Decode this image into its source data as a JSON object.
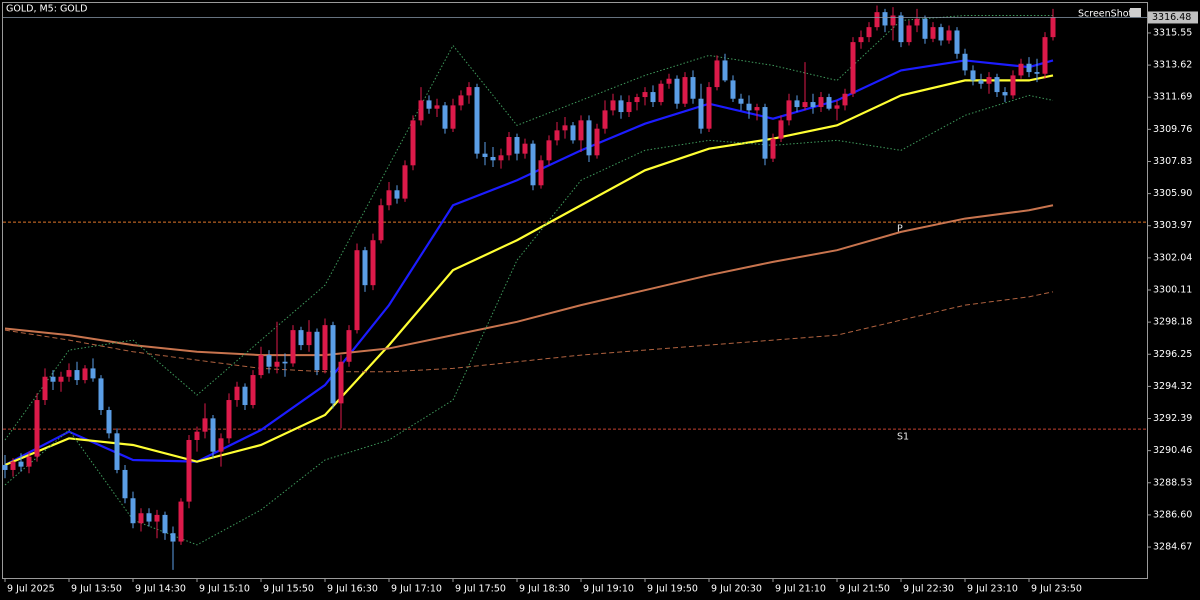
{
  "chart_data": {
    "type": "candlestick",
    "title": "GOLD, M5:  GOLD",
    "screenshot_label": "ScreenShot",
    "bull_color": "#dc1a4a",
    "bear_color": "#5b9ee6",
    "last_price": 3316.48,
    "ylim": [
      3282.81,
      3317.53
    ],
    "yticks": [
      3315.55,
      3313.62,
      3311.69,
      3309.76,
      3307.83,
      {
        "value": 3305.9,
        "label": "3305.90"
      },
      3303.97,
      3302.04,
      3300.11,
      3298.18,
      3296.25,
      3294.32,
      3292.39,
      3290.46,
      3288.53,
      {
        "value": 3286.6,
        "label": "3286.60"
      },
      3284.67
    ],
    "categories": [
      "9 Jul 2025",
      null,
      null,
      null,
      null,
      null,
      null,
      null,
      "9 Jul 13:50",
      null,
      null,
      null,
      null,
      null,
      null,
      null,
      "9 Jul 14:30",
      null,
      null,
      null,
      null,
      null,
      null,
      null,
      "9 Jul 15:10",
      null,
      null,
      null,
      null,
      null,
      null,
      null,
      "9 Jul 15:50",
      null,
      null,
      null,
      null,
      null,
      null,
      null,
      "9 Jul 16:30",
      null,
      null,
      null,
      null,
      null,
      null,
      null,
      "9 Jul 17:10",
      null,
      null,
      null,
      null,
      null,
      null,
      null,
      "9 Jul 17:50",
      null,
      null,
      null,
      null,
      null,
      null,
      null,
      "9 Jul 18:30",
      null,
      null,
      null,
      null,
      null,
      null,
      null,
      "9 Jul 19:10",
      null,
      null,
      null,
      null,
      null,
      null,
      null,
      "9 Jul 19:50",
      null,
      null,
      null,
      null,
      null,
      null,
      null,
      "9 Jul 20:30",
      null,
      null,
      null,
      null,
      null,
      null,
      null,
      "9 Jul 21:10",
      null,
      null,
      null,
      null,
      null,
      null,
      null,
      "9 Jul 21:50",
      null,
      null,
      null,
      null,
      null,
      null,
      null,
      "9 Jul 22:30",
      null,
      null,
      null,
      null,
      null,
      null,
      null,
      "9 Jul 23:10",
      null,
      null,
      null,
      null,
      null,
      null,
      null,
      "9 Jul 23:50",
      null,
      null,
      null
    ],
    "candles": [
      [
        3289.6,
        3290.2,
        3288.8,
        3289.3
      ],
      [
        3289.3,
        3290.0,
        3288.9,
        3289.8
      ],
      [
        3289.8,
        3290.3,
        3289.2,
        3289.5
      ],
      [
        3289.5,
        3290.4,
        3289.1,
        3290.1
      ],
      [
        3290.1,
        3293.9,
        3289.8,
        3293.5
      ],
      [
        3293.5,
        3295.4,
        3293.2,
        3294.9
      ],
      [
        3294.9,
        3295.3,
        3294.1,
        3294.6
      ],
      [
        3294.6,
        3295.2,
        3294.0,
        3294.9
      ],
      [
        3294.9,
        3295.7,
        3294.6,
        3295.3
      ],
      [
        3295.3,
        3295.8,
        3294.4,
        3294.7
      ],
      [
        3294.7,
        3295.6,
        3294.5,
        3295.4
      ],
      [
        3295.4,
        3296.0,
        3294.6,
        3294.8
      ],
      [
        3294.8,
        3295.0,
        3292.6,
        3292.9
      ],
      [
        3292.9,
        3293.1,
        3291.2,
        3291.5
      ],
      [
        3291.5,
        3291.8,
        3289.1,
        3289.3
      ],
      [
        3289.3,
        3289.6,
        3287.3,
        3287.6
      ],
      [
        3287.6,
        3288.0,
        3285.8,
        3286.1
      ],
      [
        3286.1,
        3287.0,
        3285.6,
        3286.7
      ],
      [
        3286.7,
        3287.0,
        3285.9,
        3286.2
      ],
      [
        3286.2,
        3286.9,
        3285.2,
        3286.6
      ],
      [
        3286.6,
        3286.8,
        3285.1,
        3285.5
      ],
      [
        3285.5,
        3285.9,
        3283.3,
        3285.0
      ],
      [
        3285.0,
        3287.6,
        3284.8,
        3287.4
      ],
      [
        3287.4,
        3291.4,
        3287.0,
        3291.1
      ],
      [
        3291.1,
        3291.9,
        3290.4,
        3291.6
      ],
      [
        3291.6,
        3293.3,
        3291.2,
        3292.4
      ],
      [
        3292.4,
        3292.6,
        3290.0,
        3290.4
      ],
      [
        3290.4,
        3291.5,
        3289.5,
        3291.2
      ],
      [
        3291.2,
        3293.9,
        3290.9,
        3293.5
      ],
      [
        3293.5,
        3294.6,
        3293.1,
        3294.3
      ],
      [
        3294.3,
        3294.5,
        3292.9,
        3293.2
      ],
      [
        3293.2,
        3295.3,
        3293.0,
        3295.0
      ],
      [
        3295.0,
        3296.7,
        3294.8,
        3296.2
      ],
      [
        3296.2,
        3296.5,
        3295.1,
        3295.5
      ],
      [
        3295.5,
        3298.2,
        3295.1,
        3295.8
      ],
      [
        3295.8,
        3296.3,
        3294.9,
        3295.7
      ],
      [
        3295.7,
        3298.0,
        3295.5,
        3297.7
      ],
      [
        3297.7,
        3297.9,
        3296.5,
        3296.8
      ],
      [
        3296.8,
        3298.3,
        3296.4,
        3297.6
      ],
      [
        3297.6,
        3297.8,
        3295.0,
        3295.3
      ],
      [
        3295.3,
        3298.4,
        3295.1,
        3298.0
      ],
      [
        3298.0,
        3298.2,
        3293.0,
        3293.3
      ],
      [
        3293.3,
        3296.2,
        3291.8,
        3295.8
      ],
      [
        3295.8,
        3298.0,
        3295.5,
        3297.7
      ],
      [
        3297.7,
        3302.9,
        3297.5,
        3302.5
      ],
      [
        3302.5,
        3302.7,
        3300.0,
        3300.4
      ],
      [
        3300.4,
        3303.5,
        3300.1,
        3303.1
      ],
      [
        3303.1,
        3305.6,
        3302.9,
        3305.2
      ],
      [
        3305.2,
        3306.6,
        3304.9,
        3306.1
      ],
      [
        3306.1,
        3306.4,
        3305.3,
        3305.6
      ],
      [
        3305.6,
        3307.9,
        3305.4,
        3307.6
      ],
      [
        3307.6,
        3310.6,
        3307.3,
        3310.3
      ],
      [
        3310.3,
        3312.3,
        3310.0,
        3311.5
      ],
      [
        3311.5,
        3311.8,
        3310.7,
        3311.0
      ],
      [
        3311.0,
        3311.6,
        3310.5,
        3311.2
      ],
      [
        3311.2,
        3311.4,
        3309.5,
        3309.8
      ],
      [
        3309.8,
        3311.6,
        3309.6,
        3311.2
      ],
      [
        3311.2,
        3312.1,
        3310.9,
        3311.8
      ],
      [
        3311.8,
        3312.6,
        3311.3,
        3312.3
      ],
      [
        3312.3,
        3312.5,
        3308.0,
        3308.3
      ],
      [
        3308.3,
        3309.0,
        3307.6,
        3308.1
      ],
      [
        3308.1,
        3308.7,
        3307.5,
        3307.9
      ],
      [
        3307.9,
        3308.6,
        3307.4,
        3308.2
      ],
      [
        3308.2,
        3309.6,
        3307.9,
        3309.3
      ],
      [
        3309.3,
        3309.5,
        3307.9,
        3308.3
      ],
      [
        3308.3,
        3309.2,
        3308.0,
        3308.9
      ],
      [
        3308.9,
        3309.1,
        3306.1,
        3306.4
      ],
      [
        3306.4,
        3308.2,
        3306.2,
        3307.9
      ],
      [
        3307.9,
        3309.4,
        3307.6,
        3309.1
      ],
      [
        3309.1,
        3310.2,
        3308.8,
        3309.7
      ],
      [
        3309.7,
        3310.5,
        3309.2,
        3310.0
      ],
      [
        3310.0,
        3310.2,
        3308.9,
        3309.1
      ],
      [
        3309.1,
        3310.6,
        3308.4,
        3310.3
      ],
      [
        3310.3,
        3310.6,
        3307.8,
        3308.2
      ],
      [
        3308.2,
        3310.1,
        3308.0,
        3309.8
      ],
      [
        3309.8,
        3311.5,
        3309.5,
        3310.9
      ],
      [
        3310.9,
        3311.9,
        3310.6,
        3311.5
      ],
      [
        3311.5,
        3311.8,
        3310.4,
        3310.8
      ],
      [
        3310.8,
        3311.8,
        3310.5,
        3311.4
      ],
      [
        3311.4,
        3311.9,
        3310.9,
        3311.7
      ],
      [
        3311.7,
        3312.3,
        3311.2,
        3312.0
      ],
      [
        3312.0,
        3312.4,
        3311.1,
        3311.4
      ],
      [
        3311.4,
        3312.7,
        3311.2,
        3312.5
      ],
      [
        3312.5,
        3313.1,
        3312.2,
        3312.8
      ],
      [
        3312.8,
        3313.0,
        3311.0,
        3311.3
      ],
      [
        3311.3,
        3313.2,
        3311.1,
        3312.9
      ],
      [
        3312.9,
        3313.3,
        3311.3,
        3311.6
      ],
      [
        3311.6,
        3312.5,
        3309.5,
        3309.8
      ],
      [
        3309.8,
        3312.6,
        3309.6,
        3312.3
      ],
      [
        3312.3,
        3314.2,
        3312.1,
        3313.9
      ],
      [
        3313.9,
        3314.3,
        3312.6,
        3312.7
      ],
      [
        3312.7,
        3313.0,
        3311.4,
        3311.6
      ],
      [
        3311.6,
        3311.9,
        3310.9,
        3311.3
      ],
      [
        3311.3,
        3311.8,
        3310.4,
        3310.9
      ],
      [
        3310.9,
        3311.3,
        3310.3,
        3311.1
      ],
      [
        3311.1,
        3311.3,
        3307.6,
        3308.0
      ],
      [
        3308.0,
        3309.5,
        3307.8,
        3309.2
      ],
      [
        3309.2,
        3310.6,
        3309.0,
        3310.3
      ],
      [
        3310.3,
        3311.9,
        3310.0,
        3311.5
      ],
      [
        3311.5,
        3311.8,
        3310.8,
        3311.1
      ],
      [
        3311.1,
        3313.8,
        3310.9,
        3311.4
      ],
      [
        3311.4,
        3311.9,
        3310.7,
        3311.1
      ],
      [
        3311.1,
        3312.0,
        3310.8,
        3311.7
      ],
      [
        3311.7,
        3311.9,
        3310.9,
        3311.0
      ],
      [
        3311.0,
        3311.5,
        3310.3,
        3311.2
      ],
      [
        3311.2,
        3312.2,
        3310.9,
        3311.9
      ],
      [
        3311.9,
        3315.3,
        3311.7,
        3315.0
      ],
      [
        3315.0,
        3315.7,
        3314.6,
        3315.3
      ],
      [
        3315.3,
        3316.2,
        3315.0,
        3315.9
      ],
      [
        3315.9,
        3317.2,
        3315.7,
        3316.8
      ],
      [
        3316.8,
        3317.0,
        3315.6,
        3316.0
      ],
      [
        3316.0,
        3317.1,
        3315.1,
        3316.6
      ],
      [
        3316.6,
        3316.8,
        3314.7,
        3315.0
      ],
      [
        3315.0,
        3316.3,
        3314.8,
        3316.0
      ],
      [
        3316.0,
        3317.0,
        3315.6,
        3316.4
      ],
      [
        3316.4,
        3316.6,
        3314.9,
        3315.2
      ],
      [
        3315.2,
        3316.2,
        3315.0,
        3315.9
      ],
      [
        3315.9,
        3316.1,
        3314.8,
        3315.1
      ],
      [
        3315.1,
        3316.0,
        3314.9,
        3315.7
      ],
      [
        3315.7,
        3315.9,
        3314.0,
        3314.3
      ],
      [
        3314.3,
        3314.6,
        3313.0,
        3313.3
      ],
      [
        3313.3,
        3313.6,
        3312.4,
        3312.7
      ],
      [
        3312.7,
        3313.1,
        3312.2,
        3312.5
      ],
      [
        3312.5,
        3313.2,
        3311.9,
        3312.9
      ],
      [
        3312.9,
        3313.1,
        3311.7,
        3312.0
      ],
      [
        3312.0,
        3312.3,
        3311.4,
        3311.8
      ],
      [
        3311.8,
        3313.3,
        3311.6,
        3313.0
      ],
      [
        3313.0,
        3314.0,
        3312.8,
        3313.7
      ],
      [
        3313.7,
        3314.1,
        3312.9,
        3313.2
      ],
      [
        3313.2,
        3314.0,
        3312.6,
        3313.1
      ],
      [
        3313.1,
        3315.6,
        3312.8,
        3315.3
      ],
      [
        3315.3,
        3317.0,
        3315.1,
        3316.5
      ]
    ],
    "lines": [
      {
        "color": "#1c1cff",
        "style": "solid",
        "width": 2.2,
        "x": [
          0,
          8,
          16,
          24,
          32,
          40,
          48,
          56,
          64,
          72,
          80,
          88,
          96,
          104,
          112,
          120,
          128,
          131
        ],
        "values": [
          3289.6,
          3291.6,
          3289.9,
          3289.8,
          3291.7,
          3294.4,
          3299.2,
          3305.2,
          3306.7,
          3308.5,
          3310.1,
          3311.3,
          3310.4,
          3311.5,
          3313.3,
          3313.9,
          3313.5,
          3313.9
        ]
      },
      {
        "color": "#ffff33",
        "style": "solid",
        "width": 2.2,
        "x": [
          0,
          8,
          16,
          24,
          32,
          40,
          48,
          56,
          64,
          72,
          80,
          88,
          96,
          104,
          112,
          120,
          128,
          131
        ],
        "values": [
          3289.6,
          3291.2,
          3290.8,
          3289.8,
          3290.8,
          3292.6,
          3296.8,
          3301.3,
          3303.1,
          3305.2,
          3307.3,
          3308.6,
          3309.2,
          3310.0,
          3311.8,
          3312.7,
          3312.7,
          3313.0
        ]
      },
      {
        "color": "#c8744e",
        "style": "solid",
        "width": 2,
        "x": [
          0,
          8,
          16,
          24,
          32,
          40,
          48,
          56,
          64,
          72,
          80,
          88,
          96,
          104,
          112,
          120,
          128,
          131
        ],
        "values": [
          3297.8,
          3297.4,
          3296.8,
          3296.4,
          3296.2,
          3296.2,
          3296.6,
          3297.4,
          3298.2,
          3299.2,
          3300.1,
          3301.0,
          3301.8,
          3302.5,
          3303.6,
          3304.4,
          3304.9,
          3305.2
        ]
      },
      {
        "color": "#b0623f",
        "style": "dashed",
        "width": 1,
        "x": [
          0,
          8,
          16,
          24,
          32,
          40,
          48,
          56,
          64,
          72,
          80,
          88,
          96,
          104,
          112,
          120,
          128,
          131
        ],
        "values": [
          3297.7,
          3297.1,
          3296.4,
          3295.9,
          3295.4,
          3295.2,
          3295.2,
          3295.4,
          3295.8,
          3296.2,
          3296.5,
          3296.8,
          3297.1,
          3297.4,
          3298.3,
          3299.2,
          3299.7,
          3300.0
        ]
      },
      {
        "color": "#3f9a5c",
        "style": "dotted",
        "width": 1,
        "x": [
          0,
          8,
          16,
          24,
          32,
          40,
          48,
          56,
          64,
          72,
          80,
          88,
          96,
          104,
          112,
          120,
          128,
          131
        ],
        "values": [
          3291.1,
          3296.5,
          3297.1,
          3293.8,
          3297.1,
          3300.4,
          3307.6,
          3314.8,
          3310.0,
          3311.5,
          3313.0,
          3314.2,
          3313.6,
          3312.7,
          3316.3,
          3316.6,
          3316.6,
          3316.6
        ]
      },
      {
        "color": "#3f9a5c",
        "style": "dotted",
        "width": 1,
        "x": [
          0,
          8,
          16,
          24,
          32,
          40,
          48,
          56,
          64,
          72,
          80,
          88,
          96,
          104,
          112,
          120,
          128,
          131
        ],
        "values": [
          3288.4,
          3291.7,
          3286.3,
          3284.8,
          3286.9,
          3289.9,
          3291.1,
          3293.5,
          3301.9,
          3306.7,
          3308.5,
          3309.1,
          3308.8,
          3309.1,
          3308.5,
          3310.6,
          3311.8,
          3311.5
        ]
      }
    ],
    "levels": [
      {
        "label": "P",
        "value": 3304.19,
        "color": "#e0762a"
      },
      {
        "label": "S1",
        "value": 3291.75,
        "color": "#c04030"
      }
    ]
  }
}
